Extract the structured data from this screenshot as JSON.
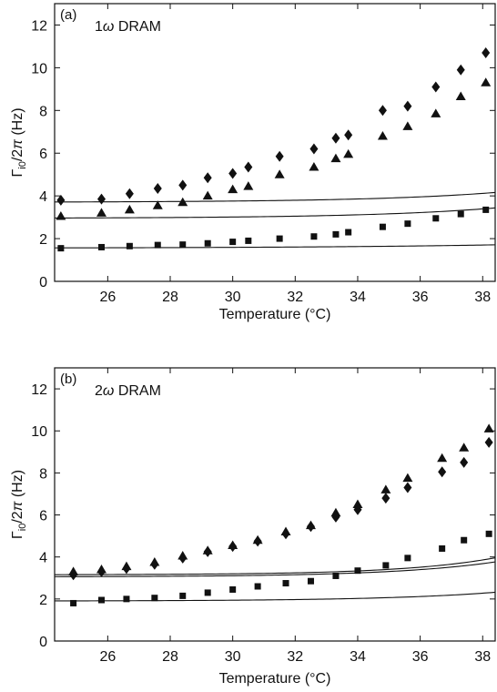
{
  "chart_data": [
    {
      "panel_label": "(a)",
      "title_prefix": "1",
      "title_symbol": "ω",
      "title_suffix": " DRAM",
      "type": "scatter",
      "xlabel": "Temperature (°C)",
      "ylabel": {
        "base": "Γ",
        "subscript": "i0",
        "rest": "/2",
        "pi": "π",
        "units": " (Hz)"
      },
      "xlim": [
        24.3,
        38.4
      ],
      "ylim": [
        0,
        13
      ],
      "xticks": [
        26,
        28,
        30,
        32,
        34,
        36,
        38
      ],
      "yticks": [
        0,
        2,
        4,
        6,
        8,
        10,
        12
      ],
      "series": [
        {
          "marker": "diamond",
          "x": [
            24.5,
            25.8,
            26.7,
            27.6,
            28.4,
            29.2,
            30.0,
            30.5,
            31.5,
            32.6,
            33.3,
            33.7,
            34.8,
            35.6,
            36.5,
            37.3,
            38.1
          ],
          "y": [
            3.8,
            3.85,
            4.1,
            4.35,
            4.5,
            4.85,
            5.05,
            5.35,
            5.85,
            6.2,
            6.7,
            6.85,
            8.0,
            8.2,
            9.1,
            9.9,
            10.7
          ],
          "fit": [
            3.7,
            0.0135,
            0.245
          ]
        },
        {
          "marker": "triangle",
          "x": [
            24.5,
            25.8,
            26.7,
            27.6,
            28.4,
            29.2,
            30.0,
            30.5,
            31.5,
            32.6,
            33.3,
            33.7,
            34.8,
            35.6,
            36.5,
            37.3,
            38.1
          ],
          "y": [
            3.05,
            3.2,
            3.35,
            3.55,
            3.7,
            4.0,
            4.3,
            4.45,
            5.0,
            5.35,
            5.75,
            5.95,
            6.8,
            7.25,
            7.85,
            8.65,
            9.3
          ],
          "fit": [
            2.95,
            0.0141,
            0.246
          ]
        },
        {
          "marker": "square",
          "x": [
            24.5,
            25.8,
            26.7,
            27.6,
            28.4,
            29.2,
            30.0,
            30.5,
            31.5,
            32.6,
            33.3,
            33.7,
            34.8,
            35.6,
            36.5,
            37.3,
            38.1
          ],
          "y": [
            1.55,
            1.6,
            1.65,
            1.7,
            1.72,
            1.78,
            1.85,
            1.9,
            2.0,
            2.1,
            2.2,
            2.3,
            2.55,
            2.7,
            2.95,
            3.15,
            3.35
          ],
          "fit": [
            1.55,
            0.016,
            0.16
          ]
        }
      ]
    },
    {
      "panel_label": "(b)",
      "title_prefix": "2",
      "title_symbol": "ω",
      "title_suffix": " DRAM",
      "type": "scatter",
      "xlabel": "Temperature (°C)",
      "ylabel": {
        "base": "Γ",
        "subscript": "i0",
        "rest": "/2",
        "pi": "π",
        "units": " (Hz)"
      },
      "xlim": [
        24.3,
        38.4
      ],
      "ylim": [
        0,
        13
      ],
      "xticks": [
        26,
        28,
        30,
        32,
        34,
        36,
        38
      ],
      "yticks": [
        0,
        2,
        4,
        6,
        8,
        10,
        12
      ],
      "series": [
        {
          "marker": "triangle",
          "x": [
            24.9,
            25.8,
            26.6,
            27.5,
            28.4,
            29.2,
            30.0,
            30.8,
            31.7,
            32.5,
            33.3,
            34.0,
            34.9,
            35.6,
            36.7,
            37.4,
            38.2
          ],
          "y": [
            3.3,
            3.4,
            3.55,
            3.75,
            4.05,
            4.3,
            4.55,
            4.8,
            5.2,
            5.5,
            6.1,
            6.5,
            7.2,
            7.75,
            8.7,
            9.2,
            10.1
          ],
          "fit": [
            3.15,
            0.0065,
            0.335
          ]
        },
        {
          "marker": "diamond",
          "x": [
            24.9,
            25.8,
            26.6,
            27.5,
            28.4,
            29.2,
            30.0,
            30.8,
            31.7,
            32.5,
            33.3,
            34.0,
            34.9,
            35.6,
            36.7,
            37.4,
            38.2
          ],
          "y": [
            3.15,
            3.3,
            3.45,
            3.65,
            3.95,
            4.25,
            4.5,
            4.75,
            5.1,
            5.45,
            5.9,
            6.25,
            6.8,
            7.3,
            8.05,
            8.5,
            9.45
          ],
          "fit": [
            3.05,
            0.0095,
            0.3
          ]
        },
        {
          "marker": "square",
          "x": [
            24.9,
            25.8,
            26.6,
            27.5,
            28.4,
            29.2,
            30.0,
            30.8,
            31.7,
            32.5,
            33.3,
            34.0,
            34.9,
            35.6,
            36.7,
            37.4,
            38.2
          ],
          "y": [
            1.8,
            1.95,
            2.0,
            2.05,
            2.15,
            2.3,
            2.45,
            2.6,
            2.75,
            2.85,
            3.1,
            3.35,
            3.6,
            3.95,
            4.4,
            4.8,
            5.1
          ],
          "fit": [
            1.9,
            0.008,
            0.275
          ]
        }
      ]
    }
  ]
}
